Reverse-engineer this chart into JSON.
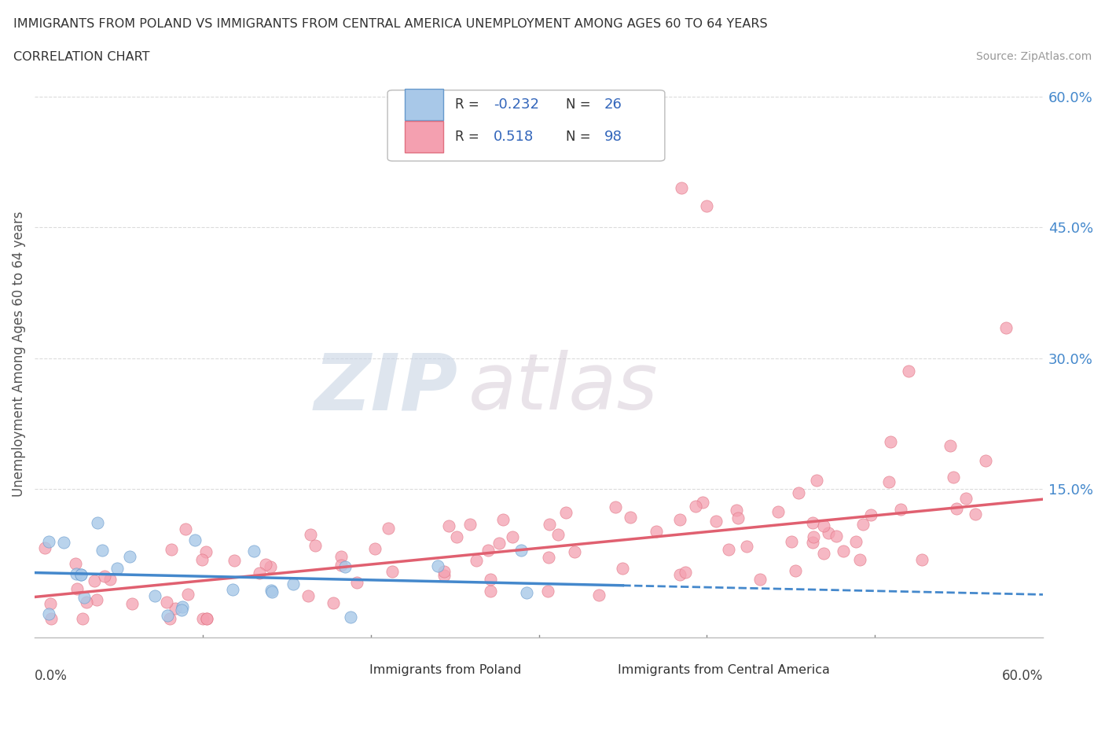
{
  "title_line1": "IMMIGRANTS FROM POLAND VS IMMIGRANTS FROM CENTRAL AMERICA UNEMPLOYMENT AMONG AGES 60 TO 64 YEARS",
  "title_line2": "CORRELATION CHART",
  "source": "Source: ZipAtlas.com",
  "ylabel": "Unemployment Among Ages 60 to 64 years",
  "x_lim": [
    0.0,
    0.6
  ],
  "y_lim": [
    -0.02,
    0.63
  ],
  "poland_R": -0.232,
  "poland_N": 26,
  "central_R": 0.518,
  "central_N": 98,
  "poland_color": "#A8C8E8",
  "poland_edge_color": "#6699CC",
  "central_color": "#F4A0B0",
  "central_edge_color": "#E07080",
  "poland_trend_color": "#4488CC",
  "central_trend_color": "#E06070",
  "watermark_color": "#C8D4E8",
  "background_color": "#FFFFFF",
  "grid_color": "#CCCCCC",
  "right_tick_color": "#4488CC",
  "legend_R_color": "#3366BB",
  "legend_N_color": "#3366BB"
}
